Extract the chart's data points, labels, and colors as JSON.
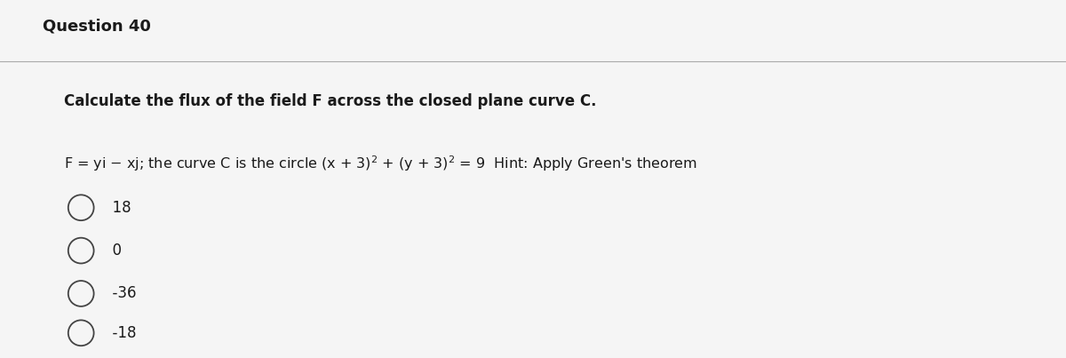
{
  "title": "Question 40",
  "bold_text": "Calculate the flux of the field F across the closed plane curve C.",
  "options": [
    "18",
    "0",
    "-36",
    "-18"
  ],
  "background_color": "#f5f5f5",
  "title_fontsize": 13,
  "bold_fontsize": 12,
  "problem_fontsize": 11.5,
  "option_fontsize": 12,
  "title_color": "#1a1a1a",
  "text_color": "#1a1a1a",
  "line_color": "#aaaaaa"
}
